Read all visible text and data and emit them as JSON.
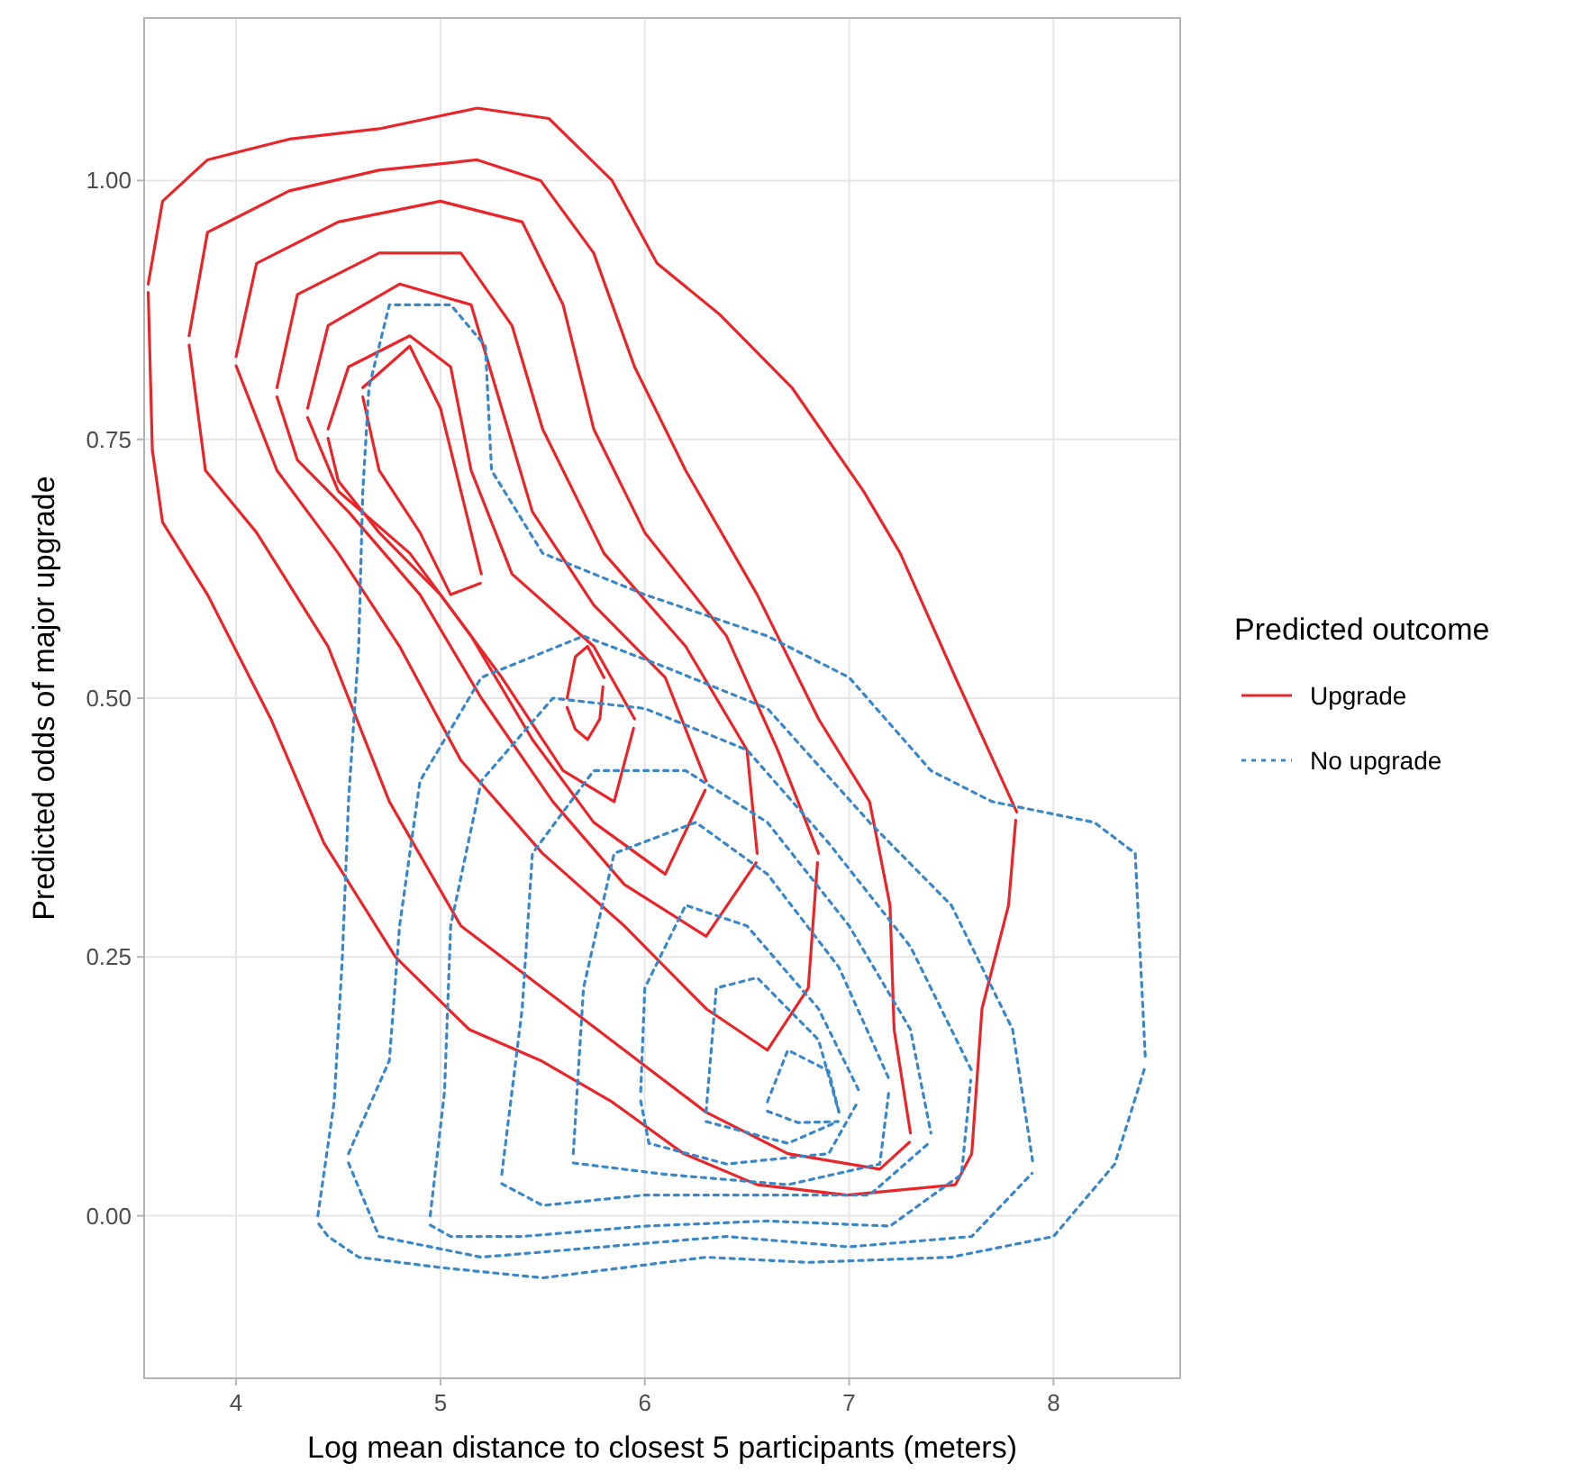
{
  "chart_data": {
    "type": "line",
    "xlabel": "Log mean distance to closest 5 participants (meters)",
    "ylabel": "Predicted odds of major upgrade",
    "legend_title": "Predicted outcome",
    "legend": "right",
    "grid": true,
    "marker": "none",
    "xlim": [
      3.55,
      8.62
    ],
    "xticks": [
      4,
      5,
      6,
      7,
      8
    ],
    "ylim": [
      -0.157,
      1.157
    ],
    "yticks": [
      {
        "value": 0,
        "label": "0.00"
      },
      {
        "value": 0.25,
        "label": "0.25"
      },
      {
        "value": 0.5,
        "label": "0.50"
      },
      {
        "value": 0.75,
        "label": "0.75"
      },
      {
        "value": 1,
        "label": "1.00"
      }
    ],
    "series": [
      {
        "name": "Upgrade",
        "color": "#e8262a",
        "line_style": "solid",
        "x": [
          3.57,
          3.64,
          3.86,
          4.26,
          4.7,
          5.18,
          5.53,
          5.84,
          6.06,
          6.37,
          6.72,
          7.07,
          7.25,
          7.52,
          7.82
        ],
        "values": [
          0.9,
          0.98,
          1.02,
          1.04,
          1.05,
          1.07,
          1.06,
          1.0,
          0.92,
          0.87,
          0.8,
          0.7,
          0.64,
          0.52,
          0.39
        ]
      },
      {
        "color": "#e8262a",
        "line_style": "solid",
        "x": [
          3.57,
          3.59,
          3.64,
          3.86,
          4.17,
          4.43,
          4.78,
          5.14,
          5.49,
          5.84,
          6.19,
          6.55,
          6.99,
          7.52,
          7.6,
          7.65,
          7.78,
          7.815
        ],
        "values": [
          0.892,
          0.74,
          0.67,
          0.6,
          0.48,
          0.36,
          0.25,
          0.18,
          0.15,
          0.11,
          0.06,
          0.03,
          0.02,
          0.03,
          0.06,
          0.2,
          0.3,
          0.382
        ]
      },
      {
        "color": "#e8262a",
        "line_style": "solid",
        "x": [
          3.77,
          3.86,
          4.26,
          4.7,
          5.18,
          5.49,
          5.75,
          5.95,
          6.2,
          6.55,
          6.85,
          7.1,
          7.2,
          7.22,
          7.3
        ],
        "values": [
          0.85,
          0.95,
          0.99,
          1.01,
          1.02,
          1.0,
          0.93,
          0.82,
          0.72,
          0.6,
          0.48,
          0.4,
          0.3,
          0.18,
          0.08
        ]
      },
      {
        "color": "#e8262a",
        "line_style": "solid",
        "x": [
          3.77,
          3.85,
          4.1,
          4.45,
          4.75,
          5.1,
          5.5,
          5.9,
          6.3,
          6.7,
          7.15,
          7.295
        ],
        "values": [
          0.841,
          0.72,
          0.66,
          0.55,
          0.4,
          0.28,
          0.22,
          0.16,
          0.1,
          0.06,
          0.045,
          0.071
        ]
      },
      {
        "color": "#e8262a",
        "line_style": "solid",
        "x": [
          4.0,
          4.1,
          4.5,
          5.0,
          5.4,
          5.6,
          5.75,
          6.0,
          6.4,
          6.65,
          6.85
        ],
        "values": [
          0.83,
          0.92,
          0.96,
          0.98,
          0.96,
          0.88,
          0.76,
          0.66,
          0.56,
          0.45,
          0.35
        ]
      },
      {
        "color": "#e8262a",
        "line_style": "solid",
        "x": [
          4.0,
          4.2,
          4.5,
          4.8,
          5.1,
          5.5,
          5.9,
          6.3,
          6.6,
          6.8,
          6.845
        ],
        "values": [
          0.821,
          0.72,
          0.64,
          0.55,
          0.44,
          0.35,
          0.28,
          0.2,
          0.16,
          0.22,
          0.341
        ]
      },
      {
        "color": "#e8262a",
        "line_style": "solid",
        "x": [
          4.2,
          4.3,
          4.7,
          5.1,
          5.35,
          5.5,
          5.8,
          6.2,
          6.5,
          6.55
        ],
        "values": [
          0.8,
          0.89,
          0.93,
          0.93,
          0.86,
          0.76,
          0.64,
          0.55,
          0.45,
          0.35
        ]
      },
      {
        "color": "#e8262a",
        "line_style": "solid",
        "x": [
          4.2,
          4.3,
          4.55,
          4.9,
          5.2,
          5.55,
          5.9,
          6.3,
          6.545
        ],
        "values": [
          0.791,
          0.73,
          0.68,
          0.6,
          0.5,
          0.4,
          0.32,
          0.27,
          0.341
        ]
      },
      {
        "color": "#e8262a",
        "line_style": "solid",
        "x": [
          4.35,
          4.45,
          4.8,
          5.15,
          5.3,
          5.45,
          5.75,
          6.1,
          6.3
        ],
        "values": [
          0.78,
          0.86,
          0.9,
          0.88,
          0.78,
          0.68,
          0.59,
          0.52,
          0.42
        ]
      },
      {
        "color": "#e8262a",
        "line_style": "solid",
        "x": [
          4.35,
          4.5,
          4.85,
          5.15,
          5.45,
          5.75,
          6.1,
          6.295
        ],
        "values": [
          0.771,
          0.7,
          0.64,
          0.56,
          0.46,
          0.38,
          0.33,
          0.411
        ]
      },
      {
        "color": "#e8262a",
        "line_style": "solid",
        "x": [
          4.45,
          4.55,
          4.85,
          5.05,
          5.15,
          5.35,
          5.75,
          5.95
        ],
        "values": [
          0.76,
          0.82,
          0.85,
          0.82,
          0.72,
          0.62,
          0.55,
          0.48
        ]
      },
      {
        "color": "#e8262a",
        "line_style": "solid",
        "x": [
          4.45,
          4.5,
          4.7,
          5.0,
          5.3,
          5.6,
          5.85,
          5.945
        ],
        "values": [
          0.751,
          0.71,
          0.66,
          0.6,
          0.52,
          0.43,
          0.4,
          0.471
        ]
      },
      {
        "color": "#e8262a",
        "line_style": "solid",
        "x": [
          4.62,
          4.85,
          5.0,
          5.15,
          5.2
        ],
        "values": [
          0.8,
          0.84,
          0.78,
          0.66,
          0.62
        ]
      },
      {
        "color": "#e8262a",
        "line_style": "solid",
        "x": [
          4.62,
          4.7,
          4.9,
          5.05,
          5.195
        ],
        "values": [
          0.791,
          0.72,
          0.66,
          0.6,
          0.611
        ]
      },
      {
        "color": "#e8262a",
        "line_style": "solid",
        "x": [
          5.62,
          5.66,
          5.72,
          5.8
        ],
        "values": [
          0.5,
          0.54,
          0.55,
          0.52
        ]
      },
      {
        "color": "#e8262a",
        "line_style": "solid",
        "x": [
          5.62,
          5.66,
          5.72,
          5.78,
          5.795
        ],
        "values": [
          0.491,
          0.47,
          0.46,
          0.48,
          0.511
        ]
      },
      {
        "name": "No upgrade",
        "color": "#3a87c8",
        "line_style": "dotted",
        "x": [
          4.4,
          4.48,
          4.52,
          4.55,
          4.6,
          4.62,
          4.65,
          4.75,
          5.05,
          5.22,
          5.25,
          5.5,
          6.0,
          6.6,
          7.0,
          7.4,
          7.7,
          8.2,
          8.4,
          8.45
        ],
        "values": [
          0.0,
          0.11,
          0.25,
          0.4,
          0.55,
          0.7,
          0.8,
          0.88,
          0.88,
          0.84,
          0.72,
          0.64,
          0.6,
          0.56,
          0.52,
          0.43,
          0.4,
          0.38,
          0.35,
          0.15
        ]
      },
      {
        "color": "#3a87c8",
        "line_style": "dotted",
        "x": [
          4.405,
          4.45,
          4.6,
          5.0,
          5.5,
          5.9,
          6.3,
          6.8,
          7.5,
          8.0,
          8.3,
          8.445
        ],
        "values": [
          -0.008,
          -0.02,
          -0.04,
          -0.05,
          -0.06,
          -0.05,
          -0.04,
          -0.045,
          -0.04,
          -0.02,
          0.05,
          0.142
        ]
      },
      {
        "color": "#3a87c8",
        "line_style": "dotted",
        "x": [
          4.55,
          4.75,
          4.8,
          4.9,
          5.2,
          5.7,
          6.1,
          6.6,
          7.1,
          7.5,
          7.8,
          7.9
        ],
        "values": [
          0.06,
          0.15,
          0.28,
          0.42,
          0.52,
          0.56,
          0.53,
          0.49,
          0.38,
          0.3,
          0.18,
          0.05
        ]
      },
      {
        "color": "#3a87c8",
        "line_style": "dotted",
        "x": [
          4.55,
          4.7,
          5.2,
          5.8,
          6.4,
          7.0,
          7.6,
          7.895
        ],
        "values": [
          0.051,
          -0.02,
          -0.04,
          -0.03,
          -0.02,
          -0.03,
          -0.02,
          0.041
        ]
      },
      {
        "color": "#3a87c8",
        "line_style": "dotted",
        "x": [
          4.95,
          5.02,
          5.05,
          5.2,
          5.55,
          6.0,
          6.5,
          6.9,
          7.3,
          7.6
        ],
        "values": [
          0.0,
          0.12,
          0.28,
          0.42,
          0.5,
          0.49,
          0.45,
          0.36,
          0.26,
          0.14
        ]
      },
      {
        "color": "#3a87c8",
        "line_style": "dotted",
        "x": [
          4.95,
          5.05,
          5.4,
          6.0,
          6.6,
          7.2,
          7.55,
          7.595
        ],
        "values": [
          -0.009,
          -0.02,
          -0.02,
          -0.01,
          -0.005,
          -0.01,
          0.04,
          0.131
        ]
      },
      {
        "color": "#3a87c8",
        "line_style": "dotted",
        "x": [
          5.3,
          5.4,
          5.45,
          5.75,
          6.2,
          6.6,
          7.0,
          7.3,
          7.4
        ],
        "values": [
          0.04,
          0.2,
          0.35,
          0.43,
          0.43,
          0.38,
          0.28,
          0.18,
          0.08
        ]
      },
      {
        "color": "#3a87c8",
        "line_style": "dotted",
        "x": [
          5.3,
          5.5,
          6.0,
          6.5,
          7.1,
          7.395
        ],
        "values": [
          0.031,
          0.01,
          0.02,
          0.02,
          0.02,
          0.071
        ]
      },
      {
        "color": "#3a87c8",
        "line_style": "dotted",
        "x": [
          5.65,
          5.7,
          5.85,
          6.25,
          6.6,
          6.95,
          7.2
        ],
        "values": [
          0.06,
          0.22,
          0.35,
          0.38,
          0.33,
          0.24,
          0.13
        ]
      },
      {
        "color": "#3a87c8",
        "line_style": "dotted",
        "x": [
          5.65,
          6.1,
          6.7,
          7.15,
          7.195
        ],
        "values": [
          0.051,
          0.04,
          0.03,
          0.05,
          0.121
        ]
      },
      {
        "color": "#3a87c8",
        "line_style": "dotted",
        "x": [
          5.98,
          6.0,
          6.2,
          6.5,
          6.85,
          7.05
        ],
        "values": [
          0.12,
          0.22,
          0.3,
          0.28,
          0.2,
          0.12
        ]
      },
      {
        "color": "#3a87c8",
        "line_style": "dotted",
        "x": [
          5.98,
          6.02,
          6.4,
          6.9,
          7.045
        ],
        "values": [
          0.111,
          0.07,
          0.05,
          0.06,
          0.111
        ]
      },
      {
        "color": "#3a87c8",
        "line_style": "dotted",
        "x": [
          6.3,
          6.35,
          6.55,
          6.85,
          6.95
        ],
        "values": [
          0.1,
          0.22,
          0.23,
          0.17,
          0.1
        ]
      },
      {
        "color": "#3a87c8",
        "line_style": "dotted",
        "x": [
          6.3,
          6.7,
          6.945
        ],
        "values": [
          0.091,
          0.07,
          0.091
        ]
      },
      {
        "color": "#3a87c8",
        "line_style": "dotted",
        "x": [
          6.6,
          6.7,
          6.9,
          6.95
        ],
        "values": [
          0.11,
          0.16,
          0.14,
          0.1
        ]
      },
      {
        "color": "#3a87c8",
        "line_style": "dotted",
        "x": [
          6.6,
          6.75,
          6.945
        ],
        "values": [
          0.101,
          0.09,
          0.091
        ]
      }
    ]
  }
}
